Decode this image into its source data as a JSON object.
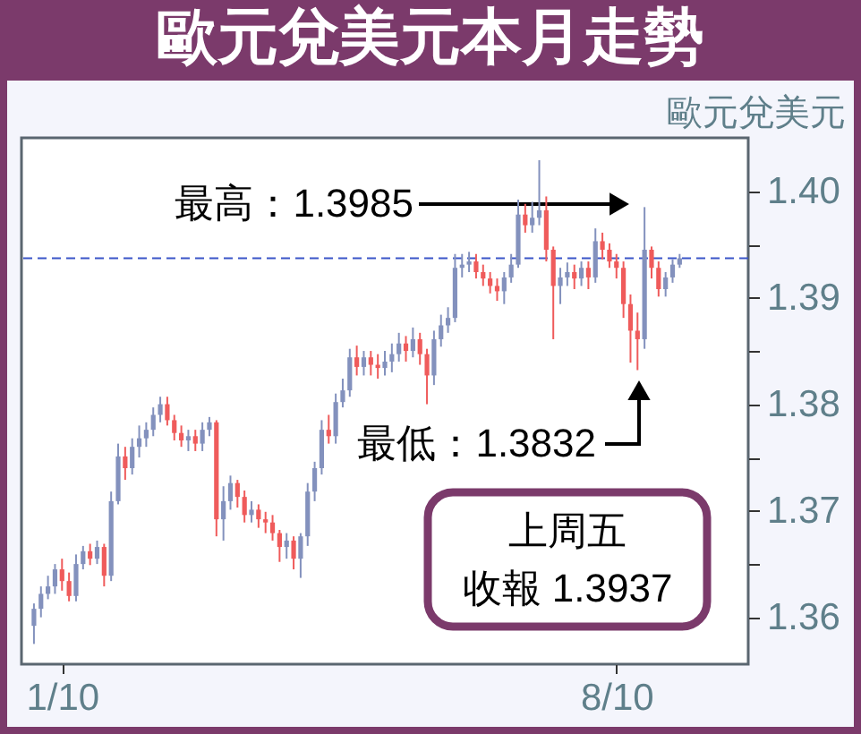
{
  "chart_data": {
    "type": "candlestick",
    "title": "歐元兌美元本月走勢",
    "ylabel": "歐元兌美元",
    "categories": [
      null,
      null,
      null,
      null,
      "1/10",
      null,
      null,
      null,
      null,
      null,
      null,
      null,
      null,
      null,
      null,
      null,
      null,
      null,
      null,
      null,
      null,
      null,
      null,
      null,
      null,
      null,
      null,
      null,
      null,
      null,
      null,
      null,
      null,
      null,
      null,
      null,
      null,
      null,
      null,
      null,
      null,
      null,
      null,
      null,
      null,
      null,
      null,
      null,
      null,
      null,
      null,
      null,
      null,
      null,
      null,
      null,
      null,
      null,
      null,
      null,
      null,
      null,
      null,
      null,
      null,
      null,
      null,
      null,
      null,
      null,
      null,
      null,
      null,
      null,
      null,
      null,
      null,
      null,
      null,
      null,
      null,
      null,
      null,
      "8/10",
      null,
      null,
      null,
      null,
      null,
      null,
      null,
      null,
      null,
      null,
      null,
      null,
      null,
      null,
      null,
      null,
      null
    ],
    "ohlc": [
      [
        1.3592,
        1.3613,
        1.3575,
        1.3608
      ],
      [
        1.3608,
        1.3629,
        1.36,
        1.3622
      ],
      [
        1.3622,
        1.3639,
        1.3617,
        1.3629
      ],
      [
        1.3629,
        1.365,
        1.3622,
        1.3645
      ],
      [
        1.3645,
        1.3655,
        1.3625,
        1.3634
      ],
      [
        1.3634,
        1.3642,
        1.3615,
        1.362
      ],
      [
        1.362,
        1.3659,
        1.3615,
        1.365
      ],
      [
        1.365,
        1.3667,
        1.3645,
        1.3662
      ],
      [
        1.3662,
        1.3669,
        1.3649,
        1.3655
      ],
      [
        1.3655,
        1.3672,
        1.365,
        1.3666
      ],
      [
        1.3666,
        1.3669,
        1.3629,
        1.3639
      ],
      [
        1.3639,
        1.3718,
        1.3634,
        1.3709
      ],
      [
        1.3709,
        1.3763,
        1.3706,
        1.3751
      ],
      [
        1.3751,
        1.376,
        1.3729,
        1.374
      ],
      [
        1.374,
        1.3768,
        1.3734,
        1.376
      ],
      [
        1.376,
        1.378,
        1.375,
        1.3768
      ],
      [
        1.3768,
        1.3783,
        1.376,
        1.3776
      ],
      [
        1.3776,
        1.3797,
        1.377,
        1.379
      ],
      [
        1.379,
        1.3807,
        1.3783,
        1.38
      ],
      [
        1.38,
        1.3807,
        1.378,
        1.3785
      ],
      [
        1.3785,
        1.379,
        1.3766,
        1.3773
      ],
      [
        1.3773,
        1.378,
        1.376,
        1.3766
      ],
      [
        1.3766,
        1.3776,
        1.3756,
        1.377
      ],
      [
        1.377,
        1.3776,
        1.3756,
        1.3763
      ],
      [
        1.3763,
        1.3783,
        1.3756,
        1.3776
      ],
      [
        1.3776,
        1.3788,
        1.377,
        1.3783
      ],
      [
        1.3783,
        1.3785,
        1.3676,
        1.3692
      ],
      [
        1.3692,
        1.3723,
        1.3672,
        1.3709
      ],
      [
        1.3709,
        1.3733,
        1.3701,
        1.3726
      ],
      [
        1.3726,
        1.3729,
        1.3703,
        1.3713
      ],
      [
        1.3713,
        1.3719,
        1.3689,
        1.3696
      ],
      [
        1.3696,
        1.3709,
        1.3689,
        1.3701
      ],
      [
        1.3701,
        1.3706,
        1.3684,
        1.3692
      ],
      [
        1.3692,
        1.3699,
        1.3679,
        1.3689
      ],
      [
        1.3689,
        1.3696,
        1.3672,
        1.3679
      ],
      [
        1.3679,
        1.3682,
        1.3652,
        1.3666
      ],
      [
        1.3666,
        1.3679,
        1.3655,
        1.3672
      ],
      [
        1.3672,
        1.3676,
        1.3645,
        1.3655
      ],
      [
        1.3655,
        1.3679,
        1.3637,
        1.3676
      ],
      [
        1.3676,
        1.3726,
        1.3667,
        1.3718
      ],
      [
        1.3718,
        1.3746,
        1.3709,
        1.374
      ],
      [
        1.374,
        1.3785,
        1.3734,
        1.3776
      ],
      [
        1.3776,
        1.379,
        1.3763,
        1.377
      ],
      [
        1.377,
        1.381,
        1.3763,
        1.3802
      ],
      [
        1.3802,
        1.3824,
        1.3797,
        1.3813
      ],
      [
        1.3813,
        1.3852,
        1.3807,
        1.3844
      ],
      [
        1.3844,
        1.3855,
        1.3827,
        1.3835
      ],
      [
        1.3835,
        1.385,
        1.3827,
        1.3844
      ],
      [
        1.3844,
        1.385,
        1.3827,
        1.3837
      ],
      [
        1.3837,
        1.3847,
        1.3824,
        1.3834
      ],
      [
        1.3834,
        1.385,
        1.3827,
        1.384
      ],
      [
        1.384,
        1.3857,
        1.383,
        1.3847
      ],
      [
        1.3847,
        1.3867,
        1.384,
        1.3857
      ],
      [
        1.3857,
        1.3864,
        1.384,
        1.385
      ],
      [
        1.385,
        1.3872,
        1.3844,
        1.3861
      ],
      [
        1.3861,
        1.3867,
        1.3837,
        1.3847
      ],
      [
        1.3847,
        1.3852,
        1.38,
        1.3827
      ],
      [
        1.3827,
        1.3869,
        1.3818,
        1.3861
      ],
      [
        1.3861,
        1.3884,
        1.3854,
        1.3874
      ],
      [
        1.3874,
        1.3891,
        1.3867,
        1.3881
      ],
      [
        1.3881,
        1.3941,
        1.3877,
        1.3928
      ],
      [
        1.3928,
        1.3941,
        1.3919,
        1.3931
      ],
      [
        1.3931,
        1.3943,
        1.3924,
        1.3934
      ],
      [
        1.3934,
        1.3941,
        1.3918,
        1.3924
      ],
      [
        1.3924,
        1.3931,
        1.3911,
        1.3918
      ],
      [
        1.3918,
        1.3924,
        1.3904,
        1.3911
      ],
      [
        1.3911,
        1.3918,
        1.3897,
        1.3906
      ],
      [
        1.3906,
        1.3924,
        1.3894,
        1.3919
      ],
      [
        1.3919,
        1.3941,
        1.3914,
        1.3931
      ],
      [
        1.3931,
        1.3992,
        1.3928,
        1.3978
      ],
      [
        1.3978,
        1.3988,
        1.3961,
        1.3968
      ],
      [
        1.3968,
        1.399,
        1.3961,
        1.3975
      ],
      [
        1.3975,
        1.4029,
        1.3968,
        1.3982
      ],
      [
        1.3982,
        1.3995,
        1.3934,
        1.3945
      ],
      [
        1.3945,
        1.3948,
        1.3861,
        1.3911
      ],
      [
        1.3911,
        1.3928,
        1.3894,
        1.3919
      ],
      [
        1.3919,
        1.3933,
        1.3911,
        1.3924
      ],
      [
        1.3924,
        1.3931,
        1.3908,
        1.3918
      ],
      [
        1.3918,
        1.3934,
        1.3911,
        1.3928
      ],
      [
        1.3928,
        1.3934,
        1.3908,
        1.3919
      ],
      [
        1.3919,
        1.3965,
        1.3914,
        1.3953
      ],
      [
        1.3953,
        1.3961,
        1.3936,
        1.3945
      ],
      [
        1.3945,
        1.3951,
        1.3928,
        1.3934
      ],
      [
        1.3934,
        1.3941,
        1.3918,
        1.3928
      ],
      [
        1.3928,
        1.3934,
        1.3881,
        1.3894
      ],
      [
        1.3894,
        1.3903,
        1.3839,
        1.3869
      ],
      [
        1.3869,
        1.3886,
        1.3832,
        1.3861
      ],
      [
        1.3861,
        1.3985,
        1.3852,
        1.3945
      ],
      [
        1.3945,
        1.3948,
        1.3918,
        1.3928
      ],
      [
        1.3928,
        1.3934,
        1.3901,
        1.3908
      ],
      [
        1.3908,
        1.3924,
        1.3901,
        1.3919
      ],
      [
        1.3919,
        1.3936,
        1.3914,
        1.3931
      ],
      [
        1.3931,
        1.3941,
        1.3928,
        1.3937
      ],
      null,
      null,
      null,
      null,
      null,
      null,
      null,
      null
    ],
    "colors": [
      "#8391bd",
      "#8391bd",
      "#8391bd",
      "#8391bd",
      "#ef5b5b",
      "#ef5b5b",
      "#8391bd",
      "#8391bd",
      "#ef5b5b",
      "#8391bd",
      "#ef5b5b",
      "#8391bd",
      "#8391bd",
      "#ef5b5b",
      "#8391bd",
      "#8391bd",
      "#8391bd",
      "#8391bd",
      "#8391bd",
      "#ef5b5b",
      "#ef5b5b",
      "#ef5b5b",
      "#8391bd",
      "#ef5b5b",
      "#8391bd",
      "#8391bd",
      "#ef5b5b",
      "#8391bd",
      "#8391bd",
      "#ef5b5b",
      "#ef5b5b",
      "#8391bd",
      "#ef5b5b",
      "#ef5b5b",
      "#ef5b5b",
      "#ef5b5b",
      "#8391bd",
      "#ef5b5b",
      "#8391bd",
      "#8391bd",
      "#8391bd",
      "#8391bd",
      "#ef5b5b",
      "#8391bd",
      "#8391bd",
      "#8391bd",
      "#ef5b5b",
      "#8391bd",
      "#ef5b5b",
      "#ef5b5b",
      "#8391bd",
      "#8391bd",
      "#8391bd",
      "#ef5b5b",
      "#8391bd",
      "#ef5b5b",
      "#ef5b5b",
      "#8391bd",
      "#8391bd",
      "#8391bd",
      "#8391bd",
      "#8391bd",
      "#8391bd",
      "#ef5b5b",
      "#ef5b5b",
      "#ef5b5b",
      "#ef5b5b",
      "#8391bd",
      "#8391bd",
      "#8391bd",
      "#ef5b5b",
      "#8391bd",
      "#8391bd",
      "#ef5b5b",
      "#ef5b5b",
      "#8391bd",
      "#8391bd",
      "#ef5b5b",
      "#8391bd",
      "#ef5b5b",
      "#8391bd",
      "#ef5b5b",
      "#ef5b5b",
      "#ef5b5b",
      "#ef5b5b",
      "#ef5b5b",
      "#ef5b5b",
      "#8391bd",
      "#ef5b5b",
      "#ef5b5b",
      "#8391bd",
      "#8391bd",
      "#8391bd",
      null,
      null,
      null,
      null,
      null,
      null,
      null,
      null
    ],
    "ylim": [
      1.3556,
      1.405
    ],
    "yticks": [
      1.36,
      1.37,
      1.38,
      1.39,
      {
        "value": 1.4,
        "label": "1.40"
      },
      {
        "value": 1.365,
        "label": null
      },
      {
        "value": 1.375,
        "label": null
      },
      {
        "value": 1.385,
        "label": null
      },
      {
        "value": 1.395,
        "label": null
      }
    ],
    "ref_lines": [
      {
        "axis": "y",
        "value": 1.3937,
        "color": "#3a55c8",
        "line_style": "dashed"
      }
    ],
    "annotations": [
      "最高：1.3985",
      "最低：1.3832",
      "上周五",
      "收報 1.3937"
    ]
  }
}
